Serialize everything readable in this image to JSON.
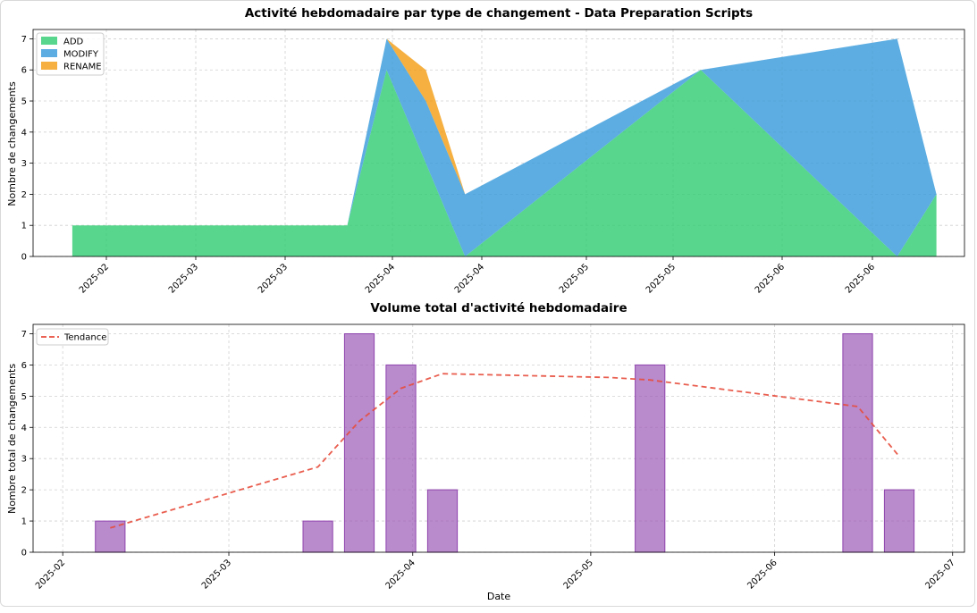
{
  "chart_data": [
    {
      "type": "area",
      "stacked": true,
      "title": "Activité hebdomadaire par type de changement - Data Preparation Scripts",
      "xlabel": "",
      "ylabel": "Nombre de changements",
      "ylim": [
        0,
        7.3
      ],
      "y_ticks": [
        "0",
        "1",
        "2",
        "3",
        "4",
        "5",
        "6",
        "7"
      ],
      "x_ticks": [
        "2025-02",
        "2025-03",
        "2025-03",
        "2025-04",
        "2025-04",
        "2025-05",
        "2025-05",
        "2025-06",
        "2025-06"
      ],
      "x": [
        "2025-01-19",
        "2025-03-02",
        "2025-03-09",
        "2025-03-16",
        "2025-03-23",
        "2025-03-30",
        "2025-05-11",
        "2025-06-15",
        "2025-06-22"
      ],
      "series": [
        {
          "name": "ADD",
          "color": "#2ecc71",
          "values": [
            1,
            1,
            1,
            6,
            3,
            0,
            6,
            0,
            2
          ]
        },
        {
          "name": "MODIFY",
          "color": "#3498db",
          "values": [
            0,
            0,
            0,
            1,
            2,
            2,
            0,
            7,
            0
          ]
        },
        {
          "name": "RENAME",
          "color": "#f39c12",
          "values": [
            0,
            0,
            0,
            0,
            1,
            0,
            0,
            0,
            0
          ]
        }
      ],
      "legend_position": "top-left"
    },
    {
      "type": "bar",
      "title": "Volume total d'activité hebdomadaire",
      "xlabel": "Date",
      "ylabel": "Nombre total de changements",
      "ylim": [
        0,
        7.3
      ],
      "y_ticks": [
        "0",
        "1",
        "2",
        "3",
        "4",
        "5",
        "6",
        "7"
      ],
      "x_ticks": [
        "2025-02",
        "2025-03",
        "2025-04",
        "2025-05",
        "2025-06",
        "2025-07"
      ],
      "bars": {
        "name": "Volume",
        "color": "#9b59b6",
        "x": [
          "2025-02-09",
          "2025-03-16",
          "2025-03-23",
          "2025-03-30",
          "2025-04-06",
          "2025-05-11",
          "2025-06-15",
          "2025-06-22"
        ],
        "values": [
          1,
          1,
          7,
          6,
          2,
          6,
          7,
          2
        ]
      },
      "trend": {
        "name": "Tendance",
        "color": "#e74c3c",
        "style": "dashed",
        "x": [
          "2025-02-09",
          "2025-03-16",
          "2025-03-23",
          "2025-03-30",
          "2025-04-06",
          "2025-05-04",
          "2025-05-11",
          "2025-06-15",
          "2025-06-22"
        ],
        "values": [
          0.78,
          2.73,
          4.2,
          5.25,
          5.72,
          5.6,
          5.52,
          4.67,
          3.07
        ]
      },
      "legend_position": "top-left"
    }
  ]
}
